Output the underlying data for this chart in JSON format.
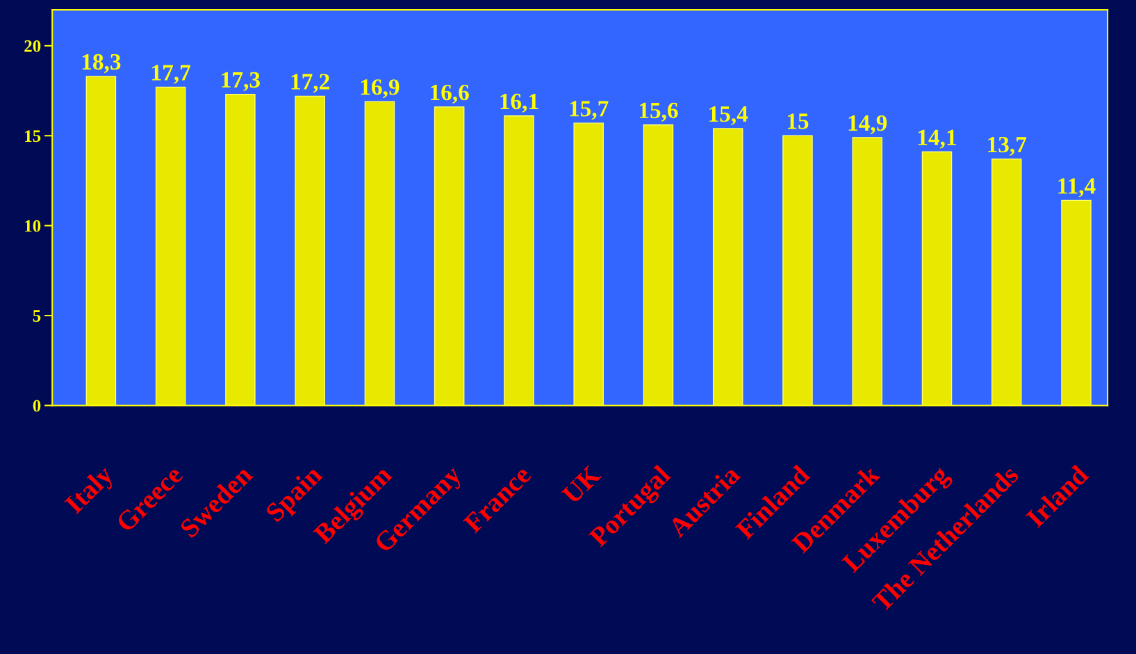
{
  "chart_data": {
    "type": "bar",
    "categories": [
      "Italy",
      "Greece",
      "Sweden",
      "Spain",
      "Belgium",
      "Germany",
      "France",
      "UK",
      "Portugal",
      "Austria",
      "Finland",
      "Denmark",
      "Luxemburg",
      "The Netherlands",
      "Irland"
    ],
    "values": [
      18.3,
      17.7,
      17.3,
      17.2,
      16.9,
      16.6,
      16.1,
      15.7,
      15.6,
      15.4,
      15,
      14.9,
      14.1,
      13.7,
      11.4
    ],
    "value_labels": [
      "18,3",
      "17,7",
      "17,3",
      "17,2",
      "16,9",
      "16,6",
      "16,1",
      "15,7",
      "15,6",
      "15,4",
      "15",
      "14,9",
      "14,1",
      "13,7",
      "11,4"
    ],
    "color": "#e8e800",
    "ylim": [
      0,
      22
    ],
    "yticks": [
      0,
      5,
      10,
      15,
      20
    ],
    "grid": false,
    "legend": false
  }
}
